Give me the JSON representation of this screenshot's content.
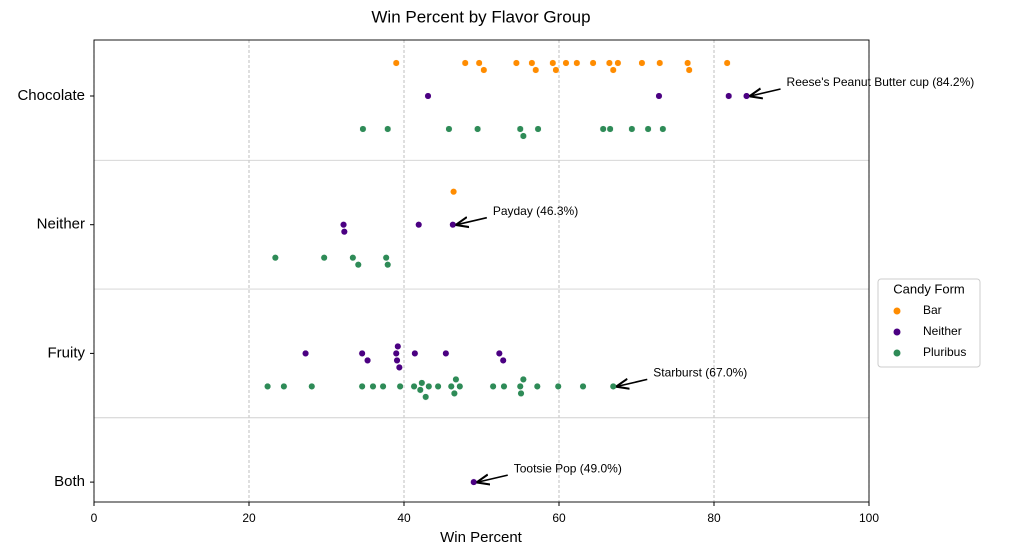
{
  "chart_data": {
    "type": "strip",
    "title": "Win Percent by Flavor Group",
    "x_label": "Win Percent",
    "xlim": [
      0,
      100
    ],
    "xticks": [
      0,
      20,
      40,
      60,
      80,
      100
    ],
    "categories": [
      "Chocolate",
      "Neither",
      "Fruity",
      "Both"
    ],
    "grid": true,
    "legend_title": "Candy Form",
    "legend_position": "right",
    "series": [
      {
        "name": "Bar",
        "color": "#ff8c00",
        "y": [
          "Chocolate",
          "Chocolate",
          "Chocolate",
          "Chocolate",
          "Chocolate",
          "Chocolate",
          "Chocolate",
          "Chocolate",
          "Chocolate",
          "Chocolate",
          "Chocolate",
          "Chocolate",
          "Chocolate",
          "Chocolate",
          "Chocolate",
          "Chocolate",
          "Chocolate",
          "Chocolate",
          "Chocolate",
          "Chocolate",
          "Neither"
        ],
        "values": [
          39.0,
          47.9,
          49.7,
          50.3,
          54.5,
          56.5,
          57.0,
          59.2,
          59.6,
          60.9,
          62.3,
          64.4,
          66.5,
          67.0,
          67.6,
          70.7,
          73.0,
          76.6,
          76.8,
          81.7,
          46.4
        ]
      },
      {
        "name": "Neither",
        "color": "#4b0082",
        "y": [
          "Chocolate",
          "Chocolate",
          "Chocolate",
          "Chocolate",
          "Neither",
          "Neither",
          "Neither",
          "Neither",
          "Fruity",
          "Fruity",
          "Fruity",
          "Fruity",
          "Fruity",
          "Fruity",
          "Fruity",
          "Fruity",
          "Fruity",
          "Fruity",
          "Fruity",
          "Both"
        ],
        "values": [
          43.1,
          72.9,
          81.9,
          84.2,
          32.2,
          32.3,
          41.9,
          46.3,
          27.3,
          34.6,
          35.3,
          39.0,
          39.1,
          39.2,
          39.4,
          41.4,
          45.4,
          52.3,
          52.8,
          49.0
        ]
      },
      {
        "name": "Pluribus",
        "color": "#2e8b57",
        "y": [
          "Chocolate",
          "Chocolate",
          "Chocolate",
          "Chocolate",
          "Chocolate",
          "Chocolate",
          "Chocolate",
          "Chocolate",
          "Chocolate",
          "Chocolate",
          "Chocolate",
          "Chocolate",
          "Neither",
          "Neither",
          "Neither",
          "Neither",
          "Neither",
          "Neither",
          "Fruity",
          "Fruity",
          "Fruity",
          "Fruity",
          "Fruity",
          "Fruity",
          "Fruity",
          "Fruity",
          "Fruity",
          "Fruity",
          "Fruity",
          "Fruity",
          "Fruity",
          "Fruity",
          "Fruity",
          "Fruity",
          "Fruity",
          "Fruity",
          "Fruity",
          "Fruity",
          "Fruity",
          "Fruity",
          "Fruity",
          "Fruity",
          "Fruity",
          "Fruity"
        ],
        "values": [
          34.7,
          37.9,
          45.8,
          49.5,
          55.0,
          55.4,
          57.3,
          65.7,
          66.6,
          69.4,
          71.5,
          73.4,
          23.4,
          29.7,
          33.4,
          34.1,
          37.7,
          37.9,
          22.4,
          24.5,
          28.1,
          34.6,
          36.0,
          37.3,
          39.5,
          41.3,
          42.1,
          42.3,
          42.8,
          43.2,
          44.4,
          46.1,
          46.5,
          46.7,
          47.2,
          51.5,
          52.9,
          55.0,
          55.1,
          55.4,
          57.2,
          59.9,
          63.1,
          67.0
        ]
      }
    ],
    "annotations": [
      {
        "text": "Reese's Peanut Butter cup (84.2%)",
        "x": 84.2,
        "category": "Chocolate"
      },
      {
        "text": "Payday (46.3%)",
        "x": 46.3,
        "category": "Neither"
      },
      {
        "text": "Starburst (67.0%)",
        "x": 67.0,
        "category": "Fruity"
      },
      {
        "text": "Tootsie Pop (49.0%)",
        "x": 49.0,
        "category": "Both"
      }
    ]
  }
}
